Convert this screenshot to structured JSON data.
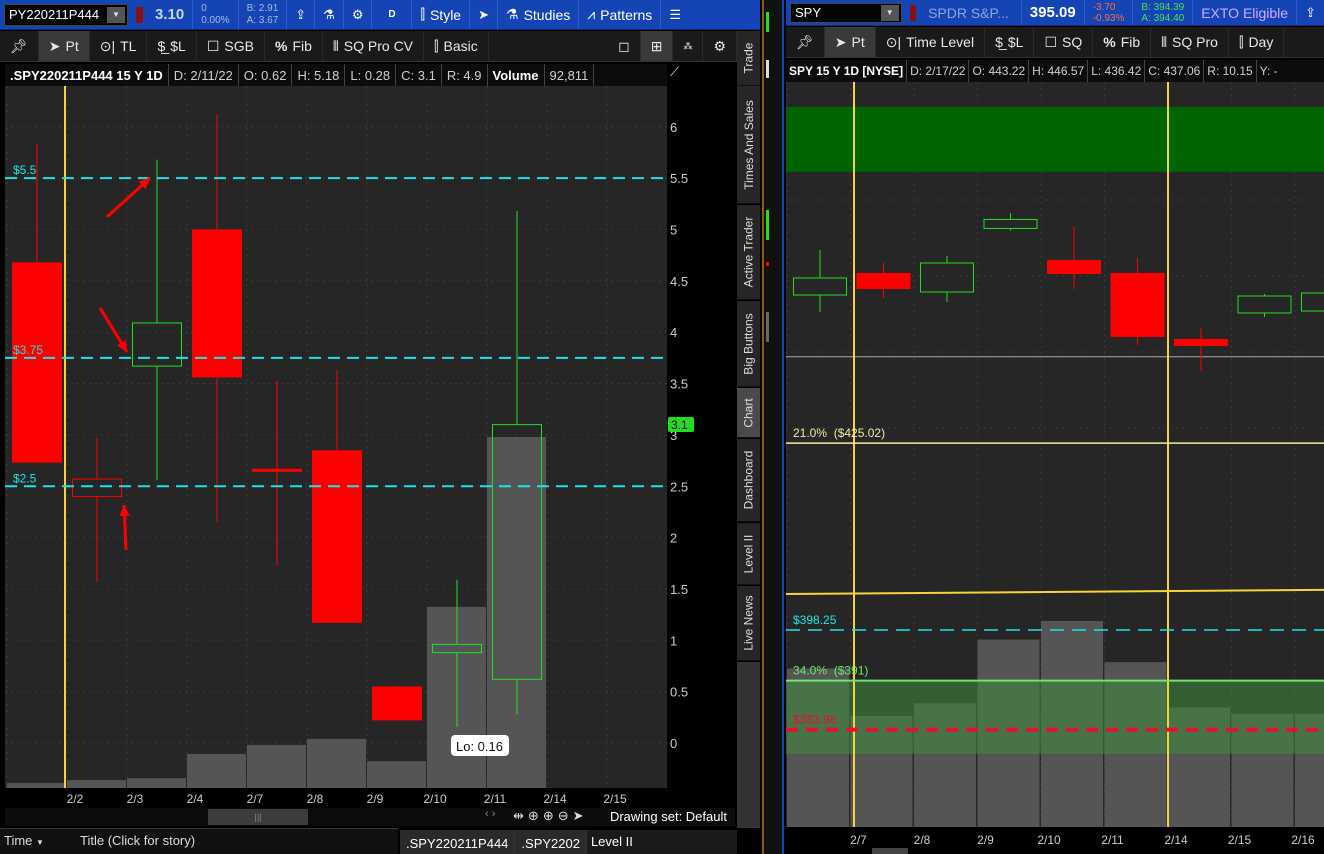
{
  "left": {
    "symbol": "PY220211P444",
    "last": "3.10",
    "change": "0",
    "change_pct": "0.00%",
    "bid": "B: 2.91",
    "ask": "A: 3.67",
    "aggregation": "D",
    "style_label": "Style",
    "studies_label": "Studies",
    "patterns_label": "Patterns",
    "tools": [
      "Pt",
      "TL",
      "$L",
      "SGB",
      "Fib",
      "SQ Pro CV",
      "Basic"
    ],
    "info": {
      "title": ".SPY220211P444 15 Y 1D",
      "date": "D: 2/11/22",
      "open": "O: 0.62",
      "high": "H: 5.18",
      "low": "L: 0.28",
      "close": "C: 3.1",
      "range": "R: 4.9",
      "volume_label": "Volume",
      "volume": "92,811"
    },
    "side_tabs": [
      "Trade",
      "Times And Sales",
      "Active Trader",
      "Big Buttons",
      "Chart",
      "Dashboard",
      "Level II",
      "Live News"
    ],
    "price_levels": [
      {
        "label": "$5.5",
        "value": 5.5
      },
      {
        "label": "$3.75",
        "value": 3.75
      },
      {
        "label": "$2.5",
        "value": 2.5
      }
    ],
    "last_badge": "3.1",
    "tooltip": "Lo: 0.16",
    "drawing_set": "Drawing set: Default",
    "news_time": "Time",
    "news_title": "Title (Click for story)",
    "bottom_tabs": [
      ".SPY220211P444",
      ".SPY2202",
      "Level II"
    ]
  },
  "right": {
    "symbol": "SPY",
    "description": "SPDR S&P...",
    "last": "395.09",
    "change": "-3.70",
    "change_pct": "-0.93%",
    "bid": "B: 394.39",
    "ask": "A: 394.40",
    "exto": "EXTO Eligible",
    "tools": [
      "Pt",
      "Time Level",
      "$L",
      "SQ",
      "Fib",
      "SQ Pro",
      "Day"
    ],
    "info": {
      "title": "SPY 15 Y 1D [NYSE]",
      "date": "D: 2/17/22",
      "open": "O: 443.22",
      "high": "H: 446.57",
      "low": "L: 436.42",
      "close": "C: 437.06",
      "range": "R: 10.15",
      "extra": "Y: -"
    },
    "levels": [
      {
        "label": "21.0%  ($425.02)",
        "value": 425.02,
        "color": "#f5e9a0"
      },
      {
        "label": "$398.25",
        "value": 398.25,
        "color": "#19e6e6"
      },
      {
        "label": "34.0%  ($391)",
        "value": 391,
        "color": "#6be86b"
      },
      {
        "label": "$383.98",
        "value": 383.98,
        "color": "#e8102a"
      }
    ]
  },
  "chart_data": [
    {
      "type": "candlestick",
      "ylim": [
        -0.45,
        6.4
      ],
      "yticks": [
        0,
        0.5,
        1,
        1.5,
        2,
        2.5,
        3,
        3.5,
        4,
        4.5,
        5,
        5.5,
        6
      ],
      "x_labels": [
        "2/2",
        "2/3",
        "2/4",
        "2/7",
        "2/8",
        "2/9",
        "2/10",
        "2/11",
        "2/14",
        "2/15"
      ],
      "candles": [
        {
          "date": "2/1",
          "o": 4.68,
          "h": 5.84,
          "l": 2.73,
          "c": 2.73,
          "color": "red",
          "hollow": false,
          "vol": 1300
        },
        {
          "date": "2/2",
          "o": 2.4,
          "h": 2.97,
          "l": 1.57,
          "c": 2.57,
          "color": "red",
          "hollow": true,
          "vol": 2100
        },
        {
          "date": "2/3",
          "o": 3.67,
          "h": 5.68,
          "l": 2.56,
          "c": 4.09,
          "color": "green",
          "hollow": true,
          "vol": 2600
        },
        {
          "date": "2/4",
          "o": 5.0,
          "h": 6.12,
          "l": 2.15,
          "c": 3.56,
          "color": "red",
          "hollow": false,
          "vol": 9000
        },
        {
          "date": "2/7",
          "o": 2.67,
          "h": 3.53,
          "l": 1.73,
          "c": 2.65,
          "color": "red",
          "hollow": false,
          "vol": 11400
        },
        {
          "date": "2/8",
          "o": 2.85,
          "h": 3.63,
          "l": 1.17,
          "c": 1.17,
          "color": "red",
          "hollow": false,
          "vol": 13000
        },
        {
          "date": "2/9",
          "o": 0.55,
          "h": 0.56,
          "l": 0.22,
          "c": 0.22,
          "color": "red",
          "hollow": false,
          "vol": 7100
        },
        {
          "date": "2/10",
          "o": 0.88,
          "h": 1.59,
          "l": 0.16,
          "c": 0.96,
          "color": "green",
          "hollow": true,
          "vol": 47900
        },
        {
          "date": "2/11",
          "o": 0.62,
          "h": 5.18,
          "l": 0.28,
          "c": 3.1,
          "color": "green",
          "hollow": true,
          "vol": 92811
        }
      ]
    },
    {
      "type": "candlestick",
      "x_labels": [
        "2/7",
        "2/8",
        "2/9",
        "2/10",
        "2/11",
        "2/14",
        "2/15",
        "2/16"
      ],
      "zone_top": [
        473.2,
        463.9
      ],
      "zone_bottom": [
        391,
        380.5
      ],
      "reference_line": 437.4,
      "trend_line": [
        403.4,
        404.0
      ],
      "candles": [
        {
          "date": "2/4",
          "o": 446.24,
          "h": 452.69,
          "l": 443.81,
          "c": 448.68,
          "color": "green",
          "hollow": true,
          "vol": 77
        },
        {
          "date": "2/7",
          "o": 449.4,
          "h": 450.83,
          "l": 445.8,
          "c": 447.1,
          "color": "red",
          "hollow": false,
          "vol": 54
        },
        {
          "date": "2/8",
          "o": 446.67,
          "h": 451.83,
          "l": 445.24,
          "c": 450.83,
          "color": "green",
          "hollow": true,
          "vol": 60
        },
        {
          "date": "2/9",
          "o": 455.78,
          "h": 457.99,
          "l": 455.49,
          "c": 457.07,
          "color": "green",
          "hollow": true,
          "vol": 91
        },
        {
          "date": "2/10",
          "o": 451.26,
          "h": 456.12,
          "l": 447.1,
          "c": 449.25,
          "color": "red",
          "hollow": false,
          "vol": 100
        },
        {
          "date": "2/11",
          "o": 449.4,
          "h": 451.55,
          "l": 439.08,
          "c": 440.23,
          "color": "red",
          "hollow": false,
          "vol": 80
        },
        {
          "date": "2/14",
          "o": 439.94,
          "h": 441.52,
          "l": 435.36,
          "c": 438.94,
          "color": "red",
          "hollow": false,
          "vol": 58
        },
        {
          "date": "2/15",
          "o": 443.67,
          "h": 446.39,
          "l": 443.09,
          "c": 446.1,
          "color": "green",
          "hollow": true,
          "vol": 55
        },
        {
          "date": "2/16",
          "o": 443.95,
          "h": 446.53,
          "l": 443.5,
          "c": 446.53,
          "color": "green",
          "hollow": true,
          "vol": 55
        }
      ]
    }
  ],
  "colors": {
    "header_blue": "#1544b4",
    "up": "#22dd22",
    "down": "#ff0000",
    "cyan": "#19e6e6",
    "yellow": "#f7d33a"
  }
}
